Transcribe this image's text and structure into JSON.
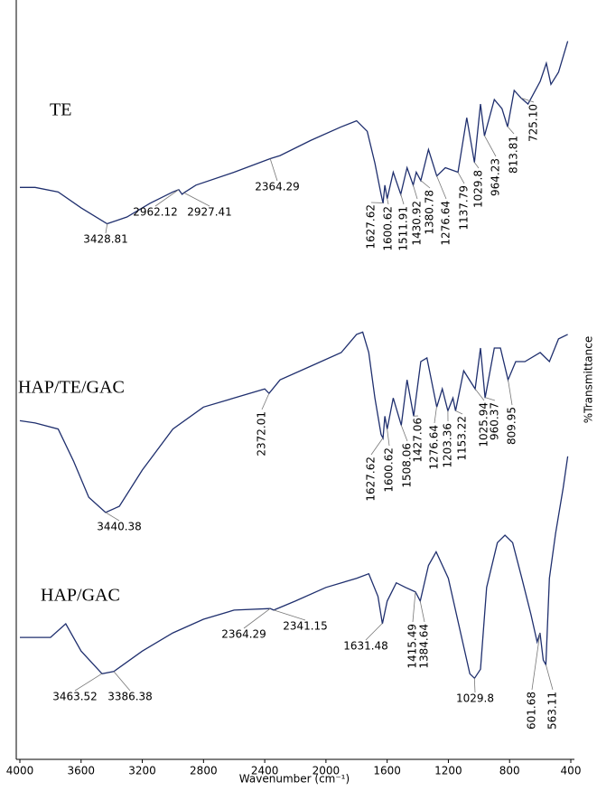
{
  "chart_data": {
    "type": "line",
    "x_label": "Wavenumber (cm⁻¹)",
    "y_label": "%Transmittance",
    "xlim": [
      4000,
      400
    ],
    "xticks": [
      4000,
      3600,
      3200,
      2800,
      2400,
      2000,
      1600,
      1200,
      800,
      400
    ],
    "ylim": [
      0,
      100
    ],
    "series": [
      {
        "name": "TE",
        "color": "#1f2f6e",
        "x": [
          4000,
          3900,
          3750,
          3600,
          3430,
          3300,
          3150,
          3000,
          2962,
          2940,
          2927,
          2850,
          2600,
          2364,
          2300,
          2100,
          1900,
          1800,
          1730,
          1680,
          1640,
          1627,
          1615,
          1600,
          1560,
          1511,
          1470,
          1430,
          1410,
          1380,
          1330,
          1276,
          1220,
          1137,
          1080,
          1029.8,
          990,
          964,
          900,
          850,
          813,
          770,
          725,
          680,
          600,
          560,
          530,
          480,
          420
        ],
        "values": [
          75.5,
          75.5,
          74.9,
          72.8,
          70.7,
          71.6,
          73.4,
          74.9,
          75.2,
          74.6,
          74.8,
          75.8,
          77.5,
          79.3,
          79.7,
          81.7,
          83.5,
          84.3,
          82.9,
          78.7,
          74.6,
          73.4,
          75.8,
          74.0,
          77.5,
          74.6,
          78.1,
          75.8,
          77.5,
          76.4,
          80.5,
          77.0,
          78.1,
          77.5,
          84.7,
          78.8,
          86.5,
          82.3,
          87.1,
          85.9,
          83.5,
          88.3,
          87.3,
          86.5,
          89.5,
          91.9,
          89.1,
          90.7,
          94.8
        ],
        "annotations": [
          "3428.81",
          "2962.12",
          "2927.41",
          "2364.29",
          "1627.62",
          "1600.62",
          "1511.91",
          "1430.92",
          "1380.78",
          "1276.64",
          "1137.79",
          "1029.8",
          "964.23",
          "813.81",
          "725.10"
        ]
      },
      {
        "name": "HAP/TE/GAC",
        "color": "#1f2f6e",
        "x": [
          4000,
          3900,
          3750,
          3650,
          3550,
          3440,
          3350,
          3200,
          3000,
          2800,
          2600,
          2400,
          2372,
          2300,
          2100,
          1900,
          1800,
          1760,
          1720,
          1680,
          1640,
          1627,
          1615,
          1600,
          1560,
          1508,
          1470,
          1427,
          1380,
          1340,
          1276,
          1240,
          1203,
          1170,
          1153,
          1100,
          1025,
          990,
          960,
          900,
          860,
          810,
          760,
          700,
          600,
          540,
          480,
          420
        ],
        "values": [
          44.7,
          44.4,
          43.6,
          39.4,
          34.6,
          32.6,
          33.4,
          38.2,
          43.6,
          46.5,
          47.7,
          48.9,
          48.3,
          50.1,
          51.9,
          53.7,
          56.1,
          56.4,
          53.7,
          47.7,
          42.9,
          42.4,
          45.3,
          43.6,
          47.7,
          44.1,
          50.1,
          45.3,
          52.5,
          53.0,
          46.5,
          48.9,
          46.0,
          47.7,
          46.0,
          51.3,
          48.9,
          54.3,
          47.7,
          54.3,
          54.3,
          50.1,
          52.5,
          52.5,
          53.7,
          52.5,
          55.5,
          56.1
        ],
        "annotations": [
          "3440.38",
          "2372.01",
          "1627.62",
          "1600.62",
          "1508.06",
          "1427.06",
          "1276.64",
          "1203.36",
          "1153.22",
          "1025.94",
          "960.37",
          "809.95"
        ]
      },
      {
        "name": "HAP/GAC",
        "color": "#1f2f6e",
        "x": [
          4000,
          3800,
          3700,
          3600,
          3463,
          3386,
          3200,
          3000,
          2800,
          2600,
          2364,
          2341,
          2200,
          2000,
          1800,
          1720,
          1660,
          1631,
          1600,
          1540,
          1480,
          1415,
          1384,
          1330,
          1280,
          1200,
          1120,
          1060,
          1029,
          990,
          950,
          880,
          830,
          780,
          720,
          660,
          620,
          601,
          580,
          563,
          540,
          500,
          450,
          420
        ],
        "values": [
          16.1,
          16.1,
          17.9,
          14.3,
          11.3,
          11.6,
          14.3,
          16.7,
          18.5,
          19.7,
          19.9,
          19.7,
          20.9,
          22.7,
          23.9,
          24.5,
          21.5,
          17.9,
          20.9,
          23.3,
          22.7,
          22.1,
          20.9,
          25.6,
          27.4,
          23.9,
          16.7,
          11.3,
          10.7,
          11.9,
          22.7,
          28.6,
          29.6,
          28.6,
          23.9,
          19.1,
          15.5,
          16.7,
          13.1,
          12.5,
          23.9,
          29.8,
          35.8,
          40.0
        ],
        "annotations": [
          "3463.52",
          "3386.38",
          "2364.29",
          "2341.15",
          "1631.48",
          "1415.49",
          "1384.64",
          "1029.8",
          "601.68",
          "563.11"
        ]
      }
    ]
  }
}
